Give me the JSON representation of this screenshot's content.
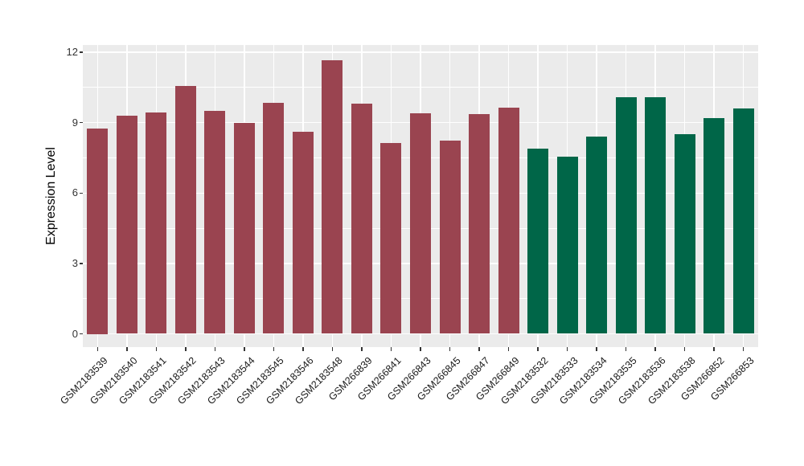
{
  "chart_data": {
    "type": "bar",
    "title": "",
    "xlabel": "",
    "ylabel": "Expression Level",
    "categories": [
      "GSM2183539",
      "GSM2183540",
      "GSM2183541",
      "GSM2183542",
      "GSM2183543",
      "GSM2183544",
      "GSM2183545",
      "GSM2183546",
      "GSM2183548",
      "GSM266839",
      "GSM266841",
      "GSM266843",
      "GSM266845",
      "GSM266847",
      "GSM266849",
      "GSM2183532",
      "GSM2183533",
      "GSM2183534",
      "GSM2183535",
      "GSM2183536",
      "GSM2183538",
      "GSM266852",
      "GSM266853"
    ],
    "values": [
      8.75,
      9.3,
      9.45,
      10.55,
      9.5,
      9.0,
      9.85,
      8.6,
      11.65,
      9.8,
      8.15,
      9.4,
      8.25,
      9.35,
      9.65,
      7.9,
      7.55,
      8.4,
      10.1,
      10.1,
      8.5,
      9.2,
      9.6
    ],
    "groups": [
      "group1",
      "group1",
      "group1",
      "group1",
      "group1",
      "group1",
      "group1",
      "group1",
      "group1",
      "group1",
      "group1",
      "group1",
      "group1",
      "group1",
      "group1",
      "group2",
      "group2",
      "group2",
      "group2",
      "group2",
      "group2",
      "group2",
      "group2"
    ],
    "group_colors": {
      "group1": "#9A4450",
      "group2": "#006648"
    },
    "yticks": [
      0,
      3,
      6,
      9,
      12
    ],
    "yticks_minor": [
      1.5,
      4.5,
      7.5,
      10.5
    ],
    "ylim": [
      -0.55,
      12.33
    ],
    "grid": true,
    "legend": "none",
    "panel_bg": "#EBEBEB",
    "grid_color": "#FFFFFF",
    "axis_text_color": "#333333"
  }
}
